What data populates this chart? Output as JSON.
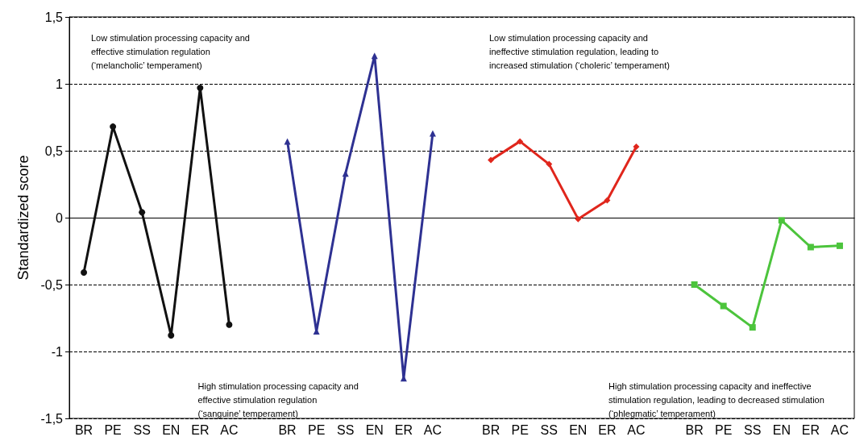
{
  "chart_data": {
    "type": "line",
    "ylabel": "Standardized score",
    "categories": [
      "BR",
      "PE",
      "SS",
      "EN",
      "ER",
      "AC",
      null,
      "BR",
      "PE",
      "SS",
      "EN",
      "ER",
      "AC",
      null,
      "BR",
      "PE",
      "SS",
      "EN",
      "ER",
      "AC",
      null,
      "BR",
      "PE",
      "SS",
      "EN",
      "ER",
      "AC"
    ],
    "series": [
      {
        "color": "#111111",
        "marker": "circle",
        "values": [
          -0.41,
          0.68,
          0.04,
          -0.88,
          0.97,
          -0.8,
          null,
          null,
          null,
          null,
          null,
          null,
          null,
          null,
          null,
          null,
          null,
          null,
          null,
          null,
          null,
          null,
          null,
          null,
          null,
          null,
          null
        ]
      },
      {
        "color": "#2e3192",
        "marker": "triangle",
        "values": [
          null,
          null,
          null,
          null,
          null,
          null,
          null,
          0.57,
          -0.85,
          0.33,
          1.21,
          -1.2,
          0.63,
          null,
          null,
          null,
          null,
          null,
          null,
          null,
          null,
          null,
          null,
          null,
          null,
          null,
          null
        ]
      },
      {
        "color": "#e0261c",
        "marker": "diamond",
        "values": [
          null,
          null,
          null,
          null,
          null,
          null,
          null,
          null,
          null,
          null,
          null,
          null,
          null,
          null,
          0.43,
          0.57,
          0.4,
          -0.01,
          0.13,
          0.53,
          null,
          null,
          null,
          null,
          null,
          null,
          null
        ]
      },
      {
        "color": "#4cc43c",
        "marker": "square",
        "values": [
          null,
          null,
          null,
          null,
          null,
          null,
          null,
          null,
          null,
          null,
          null,
          null,
          null,
          null,
          null,
          null,
          null,
          null,
          null,
          null,
          null,
          -0.5,
          -0.66,
          -0.82,
          -0.02,
          -0.22,
          -0.21
        ]
      }
    ],
    "ylim": [
      -1.5,
      1.5
    ],
    "yticks": [
      {
        "value": -1.5,
        "label": "-1,5"
      },
      -1,
      {
        "value": -0.5,
        "label": "-0,5"
      },
      0,
      {
        "value": 0.5,
        "label": "0,5"
      },
      1,
      {
        "value": 1.5,
        "label": "1,5"
      }
    ],
    "grid": "y",
    "line_style": "solid",
    "annotations": [
      "Low stimulation processing capacity and effective stimulation regulation (‘melancholic’ temperament)",
      "High stimulation processing capacity and effective stimulation regulation (‘sanguine’ temperament)",
      "Low stimulation processing capacity and ineffective stimulation regulation, leading to increased stimulation (‘choleric’ temperament)",
      "High stimulation processing capacity and ineffective stimulation regulation, leading to decreased stimulation (‘phlegmatic’ temperament)"
    ]
  }
}
